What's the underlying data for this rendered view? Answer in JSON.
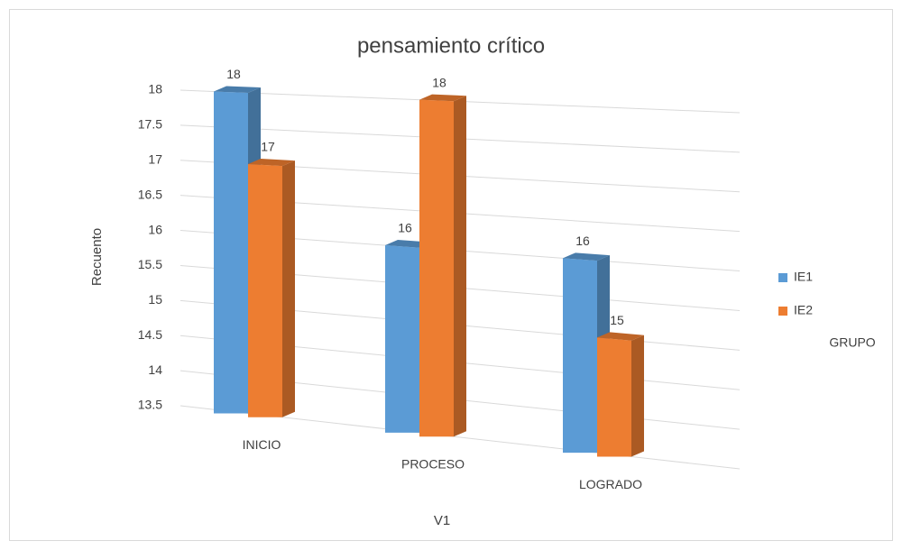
{
  "chart_data": {
    "type": "bar3d",
    "title": "pensamiento crítico",
    "x_label": "V1",
    "y_label": "Recuento",
    "categories": [
      "INICIO",
      "PROCESO",
      "LOGRADO"
    ],
    "series": [
      {
        "name": "IE1",
        "color": "#5b9bd5",
        "values": [
          18,
          16,
          16
        ]
      },
      {
        "name": "IE2",
        "color": "#ed7d31",
        "values": [
          17,
          18,
          15
        ]
      }
    ],
    "legend_title": "GRUPO",
    "legend": "right",
    "ylim": [
      13.5,
      18
    ],
    "yticks": [
      13.5,
      14,
      14.5,
      15,
      15.5,
      16,
      16.5,
      17,
      17.5,
      18
    ],
    "grid": true
  }
}
